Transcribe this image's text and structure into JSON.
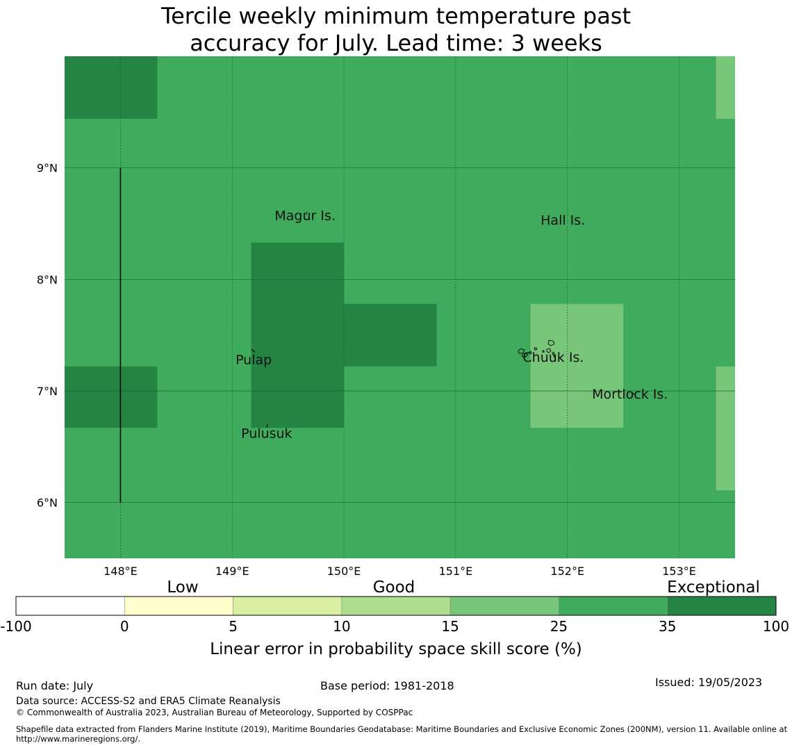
{
  "title": {
    "line1": "Tercile weekly minimum temperature past",
    "line2": "accuracy for July. Lead time: 3 weeks"
  },
  "map": {
    "lon_range": [
      147.5,
      153.5
    ],
    "lat_range": [
      5.5,
      10.0
    ],
    "x_ticks": [
      {
        "value": 148,
        "label": "148°E"
      },
      {
        "value": 149,
        "label": "149°E"
      },
      {
        "value": 150,
        "label": "150°E"
      },
      {
        "value": 151,
        "label": "151°E"
      },
      {
        "value": 152,
        "label": "152°E"
      },
      {
        "value": 153,
        "label": "153°E"
      }
    ],
    "y_ticks": [
      {
        "value": 9,
        "label": "9°N"
      },
      {
        "value": 8,
        "label": "8°N"
      },
      {
        "value": 7,
        "label": "7°N"
      },
      {
        "value": 6,
        "label": "6°N"
      }
    ],
    "background_category": "25-35",
    "cells": [
      {
        "lon0": 147.5,
        "lon1": 148.33,
        "lat0": 9.44,
        "lat1": 10.0,
        "category": "35-100"
      },
      {
        "lon0": 147.5,
        "lon1": 148.33,
        "lat0": 6.67,
        "lat1": 7.22,
        "category": "35-100"
      },
      {
        "lon0": 149.17,
        "lon1": 150.0,
        "lat0": 6.67,
        "lat1": 8.33,
        "category": "35-100"
      },
      {
        "lon0": 150.0,
        "lon1": 150.83,
        "lat0": 7.22,
        "lat1": 7.78,
        "category": "35-100"
      },
      {
        "lon0": 151.67,
        "lon1": 152.5,
        "lat0": 6.67,
        "lat1": 7.78,
        "category": "15-25"
      },
      {
        "lon0": 153.33,
        "lon1": 153.5,
        "lat0": 9.44,
        "lat1": 10.0,
        "category": "15-25"
      },
      {
        "lon0": 153.33,
        "lon1": 153.5,
        "lat0": 6.11,
        "lat1": 7.22,
        "category": "15-25"
      }
    ],
    "boundary_line": {
      "lon": 148.0,
      "lat0": 6.0,
      "lat1": 9.0
    },
    "labels": [
      {
        "text": "Magur Is.",
        "lon": 149.38,
        "lat": 8.53
      },
      {
        "text": "Hall Is.",
        "lon": 151.76,
        "lat": 8.49
      },
      {
        "text": "Pulap",
        "lon": 149.03,
        "lat": 7.24
      },
      {
        "text": "Chuuk Is.",
        "lon": 151.6,
        "lat": 7.26
      },
      {
        "text": "Mortlock Is.",
        "lon": 152.22,
        "lat": 6.93
      },
      {
        "text": "Pulusuk",
        "lon": 149.08,
        "lat": 6.58
      }
    ]
  },
  "colors": {
    "-100-0": "#ffffff",
    "0-5": "#ffffcc",
    "5-10": "#d9f0a3",
    "10-15": "#addd8e",
    "15-25": "#78c679",
    "25-35": "#41ab5d",
    "35-100": "#238443",
    "grid": "#1f5f30",
    "coast": "#000000"
  },
  "colorbar": {
    "bins": [
      {
        "category": "-100-0"
      },
      {
        "category": "0-5"
      },
      {
        "category": "5-10"
      },
      {
        "category": "10-15"
      },
      {
        "category": "15-25"
      },
      {
        "category": "25-35"
      },
      {
        "category": "35-100"
      }
    ],
    "tick_labels": [
      "-100",
      "0",
      "5",
      "10",
      "15",
      "25",
      "35",
      "100"
    ],
    "top_labels": {
      "low": "Low",
      "good": "Good",
      "exceptional": "Exceptional"
    },
    "label": "Linear error in probability space skill score (%)"
  },
  "footer": {
    "run_date": "Run date: July",
    "base_period": "Base period: 1981-2018",
    "issued": "Issued: 19/05/2023",
    "data_source": "Data source: ACCESS-S2 and ERA5 Climate Reanalysis",
    "copyright": "© Commonwealth of Australia 2023, Australian Bureau of Meteorology, Supported by COSPPac",
    "shapefile": "Shapefile data extracted from Flanders Marine Institute (2019), Maritime Boundaries Geodatabase: Maritime Boundaries and Exclusive Economic Zones (200NM), version 11. Available online at http://www.marineregions.org/."
  }
}
